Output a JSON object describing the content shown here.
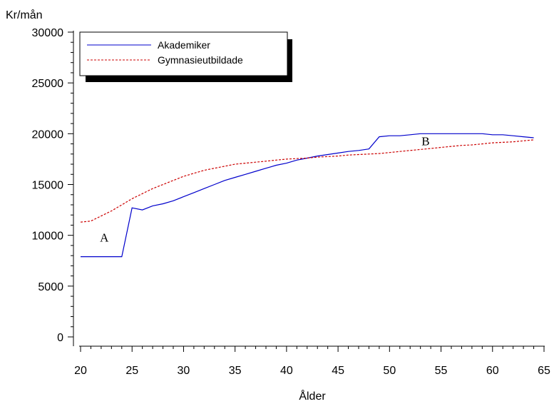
{
  "chart_data": {
    "type": "line",
    "title": "",
    "xlabel": "Ålder",
    "ylabel": "Kr/mån",
    "xlim": [
      20,
      65
    ],
    "ylim": [
      0,
      30000
    ],
    "x_ticks": [
      20,
      25,
      30,
      35,
      40,
      45,
      50,
      55,
      60,
      65
    ],
    "y_ticks": [
      0,
      5000,
      10000,
      15000,
      20000,
      25000,
      30000
    ],
    "legend_position": "top-left",
    "grid": false,
    "series": [
      {
        "name": "Akademiker",
        "color": "#0000cc",
        "style": "solid",
        "x": [
          20,
          21,
          22,
          23,
          24,
          25,
          26,
          27,
          28,
          29,
          30,
          31,
          32,
          33,
          34,
          35,
          36,
          37,
          38,
          39,
          40,
          41,
          42,
          43,
          44,
          45,
          46,
          47,
          48,
          49,
          50,
          51,
          52,
          53,
          54,
          55,
          56,
          57,
          58,
          59,
          60,
          61,
          62,
          63,
          64
        ],
        "values": [
          7900,
          7900,
          7900,
          7900,
          7900,
          12700,
          12500,
          12900,
          13100,
          13400,
          13800,
          14200,
          14600,
          15000,
          15400,
          15700,
          16000,
          16300,
          16600,
          16900,
          17100,
          17400,
          17600,
          17800,
          17950,
          18100,
          18250,
          18350,
          18500,
          19700,
          19800,
          19800,
          19900,
          20000,
          20000,
          20000,
          20000,
          20000,
          20000,
          20000,
          19900,
          19900,
          19800,
          19700,
          19600
        ]
      },
      {
        "name": "Gymnasieutbildade",
        "color": "#cc0000",
        "style": "dashed",
        "x": [
          20,
          21,
          22,
          23,
          24,
          25,
          26,
          27,
          28,
          29,
          30,
          31,
          32,
          33,
          34,
          35,
          36,
          37,
          38,
          39,
          40,
          41,
          42,
          43,
          44,
          45,
          46,
          47,
          48,
          49,
          50,
          51,
          52,
          53,
          54,
          55,
          56,
          57,
          58,
          59,
          60,
          61,
          62,
          63,
          64
        ],
        "values": [
          11300,
          11400,
          11900,
          12400,
          13000,
          13600,
          14100,
          14600,
          15000,
          15400,
          15800,
          16100,
          16400,
          16600,
          16800,
          17000,
          17100,
          17200,
          17300,
          17400,
          17500,
          17550,
          17600,
          17700,
          17750,
          17800,
          17900,
          17950,
          18000,
          18050,
          18150,
          18250,
          18350,
          18450,
          18550,
          18650,
          18750,
          18850,
          18900,
          19000,
          19100,
          19150,
          19200,
          19300,
          19400
        ]
      }
    ],
    "annotations": [
      {
        "text": "A",
        "x": 22.3,
        "y": 9800
      },
      {
        "text": "B",
        "x": 53.5,
        "y": 19300
      }
    ]
  }
}
